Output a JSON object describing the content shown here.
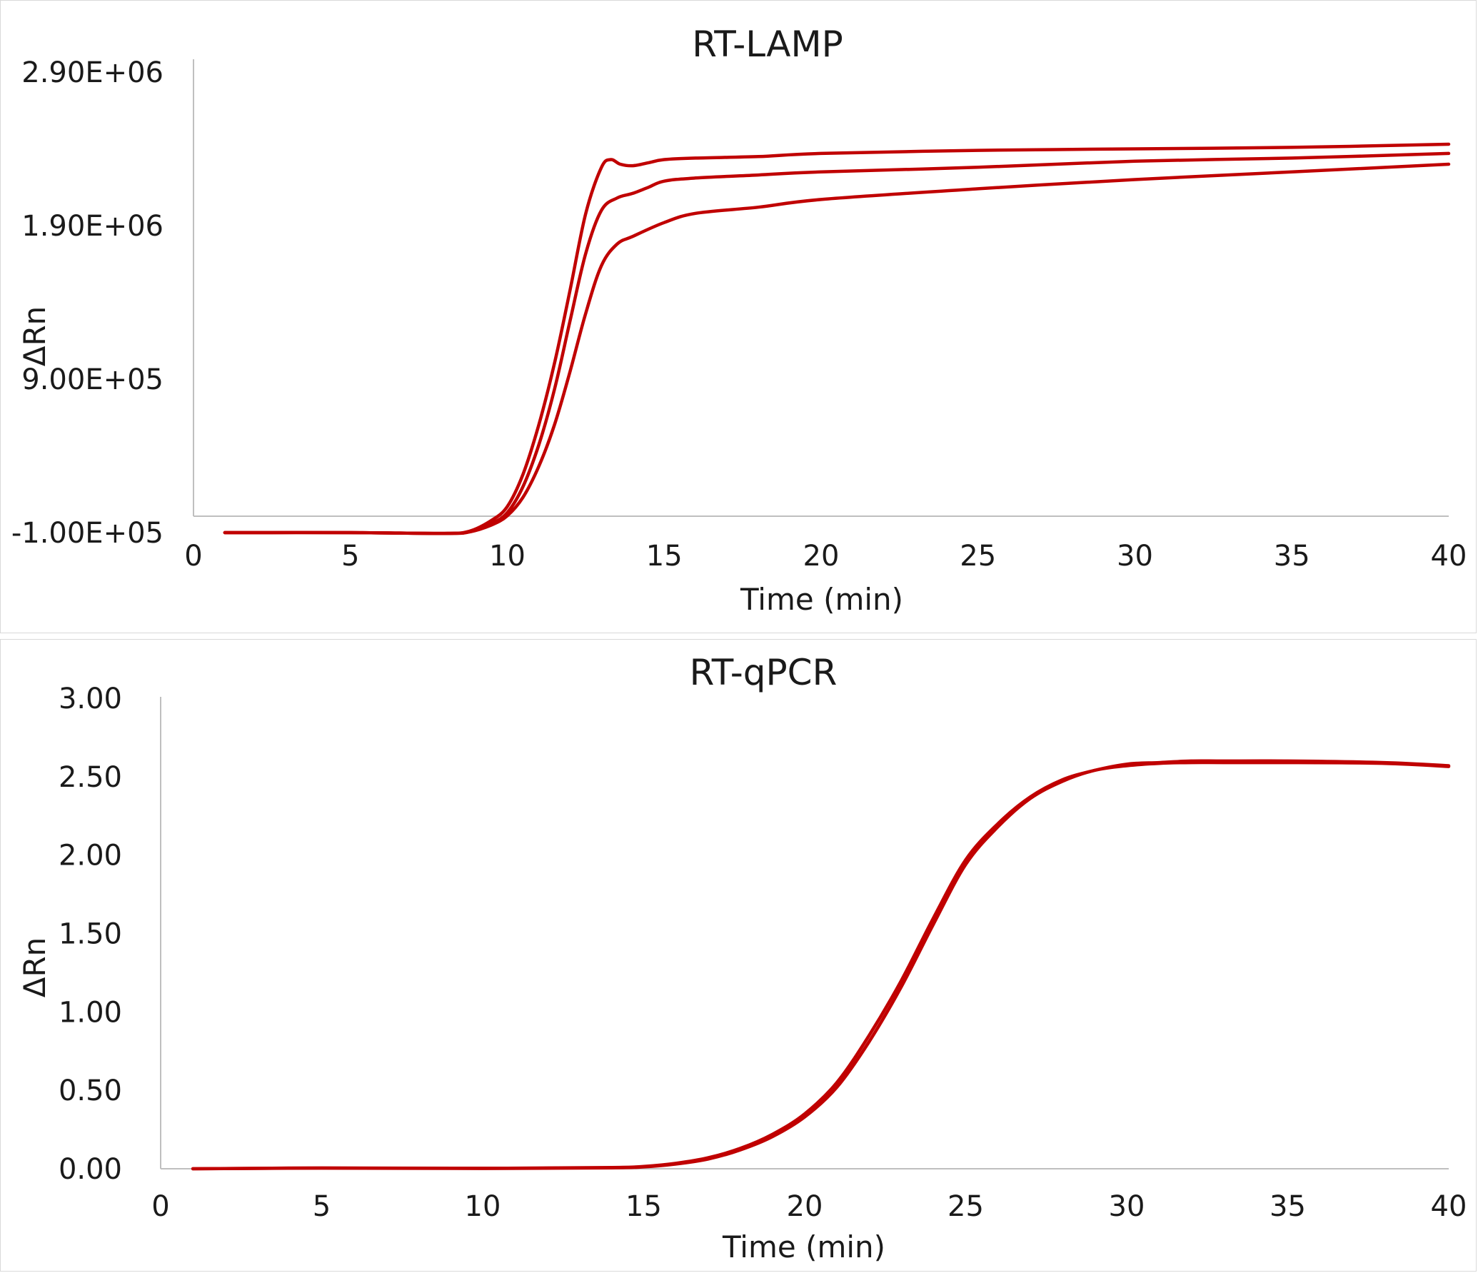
{
  "colors": {
    "series": "#c00000",
    "axis": "#bfbfbf",
    "text": "#1a1a1a",
    "border": "#d9d9d9"
  },
  "chart_data": [
    {
      "type": "line",
      "title": "RT-LAMP",
      "xlabel": "Time (min)",
      "ylabel": "ΔRn",
      "xlim": [
        0,
        40
      ],
      "ylim": [
        -100000,
        2900000
      ],
      "x_ticks": [
        "0",
        "5",
        "10",
        "15",
        "20",
        "25",
        "30",
        "35",
        "40"
      ],
      "y_ticks": [
        "-1.00E+05",
        "9.00E+05",
        "1.90E+06",
        "2.90E+06"
      ],
      "y_tick_values": [
        -100000,
        900000,
        1900000,
        2900000
      ],
      "grid": false,
      "legend": "none",
      "series": [
        {
          "points": [
            [
              1,
              -100000
            ],
            [
              5,
              -100000
            ],
            [
              8,
              -105000
            ],
            [
              8.8,
              -90000
            ],
            [
              9.5,
              -20000
            ],
            [
              10,
              70000
            ],
            [
              10.5,
              280000
            ],
            [
              11,
              600000
            ],
            [
              11.5,
              1000000
            ],
            [
              12,
              1480000
            ],
            [
              12.5,
              1980000
            ],
            [
              13,
              2280000
            ],
            [
              13.3,
              2330000
            ],
            [
              13.6,
              2300000
            ],
            [
              14,
              2290000
            ],
            [
              14.5,
              2310000
            ],
            [
              15,
              2330000
            ],
            [
              16,
              2340000
            ],
            [
              18,
              2350000
            ],
            [
              20,
              2370000
            ],
            [
              25,
              2390000
            ],
            [
              30,
              2400000
            ],
            [
              35,
              2410000
            ],
            [
              40,
              2430000
            ]
          ]
        },
        {
          "points": [
            [
              1,
              -100000
            ],
            [
              5,
              -100000
            ],
            [
              8,
              -105000
            ],
            [
              8.8,
              -95000
            ],
            [
              9.5,
              -40000
            ],
            [
              10,
              30000
            ],
            [
              10.5,
              200000
            ],
            [
              11,
              470000
            ],
            [
              11.5,
              830000
            ],
            [
              12,
              1280000
            ],
            [
              12.5,
              1720000
            ],
            [
              13,
              2000000
            ],
            [
              13.5,
              2080000
            ],
            [
              14,
              2110000
            ],
            [
              14.5,
              2150000
            ],
            [
              15,
              2190000
            ],
            [
              16,
              2210000
            ],
            [
              18,
              2230000
            ],
            [
              20,
              2250000
            ],
            [
              25,
              2280000
            ],
            [
              30,
              2320000
            ],
            [
              35,
              2340000
            ],
            [
              40,
              2370000
            ]
          ]
        },
        {
          "points": [
            [
              1,
              -100000
            ],
            [
              5,
              -100000
            ],
            [
              8,
              -105000
            ],
            [
              8.8,
              -95000
            ],
            [
              9.5,
              -50000
            ],
            [
              10,
              10000
            ],
            [
              10.5,
              130000
            ],
            [
              11,
              330000
            ],
            [
              11.5,
              600000
            ],
            [
              12,
              950000
            ],
            [
              12.5,
              1330000
            ],
            [
              13,
              1640000
            ],
            [
              13.5,
              1780000
            ],
            [
              14,
              1830000
            ],
            [
              15,
              1920000
            ],
            [
              16,
              1980000
            ],
            [
              18,
              2020000
            ],
            [
              20,
              2070000
            ],
            [
              25,
              2140000
            ],
            [
              30,
              2200000
            ],
            [
              35,
              2250000
            ],
            [
              40,
              2300000
            ]
          ]
        }
      ]
    },
    {
      "type": "line",
      "title": "RT-qPCR",
      "xlabel": "Time (min)",
      "ylabel": "ΔRn",
      "xlim": [
        0,
        40
      ],
      "ylim": [
        0,
        3
      ],
      "x_ticks": [
        "0",
        "5",
        "10",
        "15",
        "20",
        "25",
        "30",
        "35",
        "40"
      ],
      "y_ticks": [
        "0.00",
        "0.50",
        "1.00",
        "1.50",
        "2.00",
        "2.50",
        "3.00"
      ],
      "y_tick_values": [
        0,
        0.5,
        1,
        1.5,
        2,
        2.5,
        3
      ],
      "grid": false,
      "legend": "none",
      "series": [
        {
          "points": [
            [
              1,
              0
            ],
            [
              5,
              0.005
            ],
            [
              10,
              0.003
            ],
            [
              14,
              0.008
            ],
            [
              15,
              0.015
            ],
            [
              16,
              0.035
            ],
            [
              17,
              0.07
            ],
            [
              18,
              0.13
            ],
            [
              19,
              0.22
            ],
            [
              20,
              0.35
            ],
            [
              21,
              0.55
            ],
            [
              22,
              0.85
            ],
            [
              23,
              1.2
            ],
            [
              24,
              1.6
            ],
            [
              25,
              1.97
            ],
            [
              26,
              2.2
            ],
            [
              27,
              2.37
            ],
            [
              28,
              2.48
            ],
            [
              29,
              2.54
            ],
            [
              30,
              2.58
            ],
            [
              31,
              2.59
            ],
            [
              32,
              2.6
            ],
            [
              33,
              2.6
            ],
            [
              35,
              2.6
            ],
            [
              38,
              2.59
            ],
            [
              40,
              2.57
            ]
          ]
        },
        {
          "points": [
            [
              1,
              0
            ],
            [
              5,
              0.004
            ],
            [
              10,
              0.002
            ],
            [
              14,
              0.006
            ],
            [
              15,
              0.012
            ],
            [
              16,
              0.03
            ],
            [
              17,
              0.062
            ],
            [
              18,
              0.12
            ],
            [
              19,
              0.205
            ],
            [
              20,
              0.33
            ],
            [
              21,
              0.52
            ],
            [
              22,
              0.81
            ],
            [
              23,
              1.16
            ],
            [
              24,
              1.56
            ],
            [
              25,
              1.94
            ],
            [
              26,
              2.18
            ],
            [
              27,
              2.36
            ],
            [
              28,
              2.47
            ],
            [
              29,
              2.54
            ],
            [
              30,
              2.57
            ],
            [
              31,
              2.585
            ],
            [
              32,
              2.59
            ],
            [
              33,
              2.59
            ],
            [
              35,
              2.59
            ],
            [
              38,
              2.585
            ],
            [
              40,
              2.565
            ]
          ]
        }
      ]
    }
  ]
}
